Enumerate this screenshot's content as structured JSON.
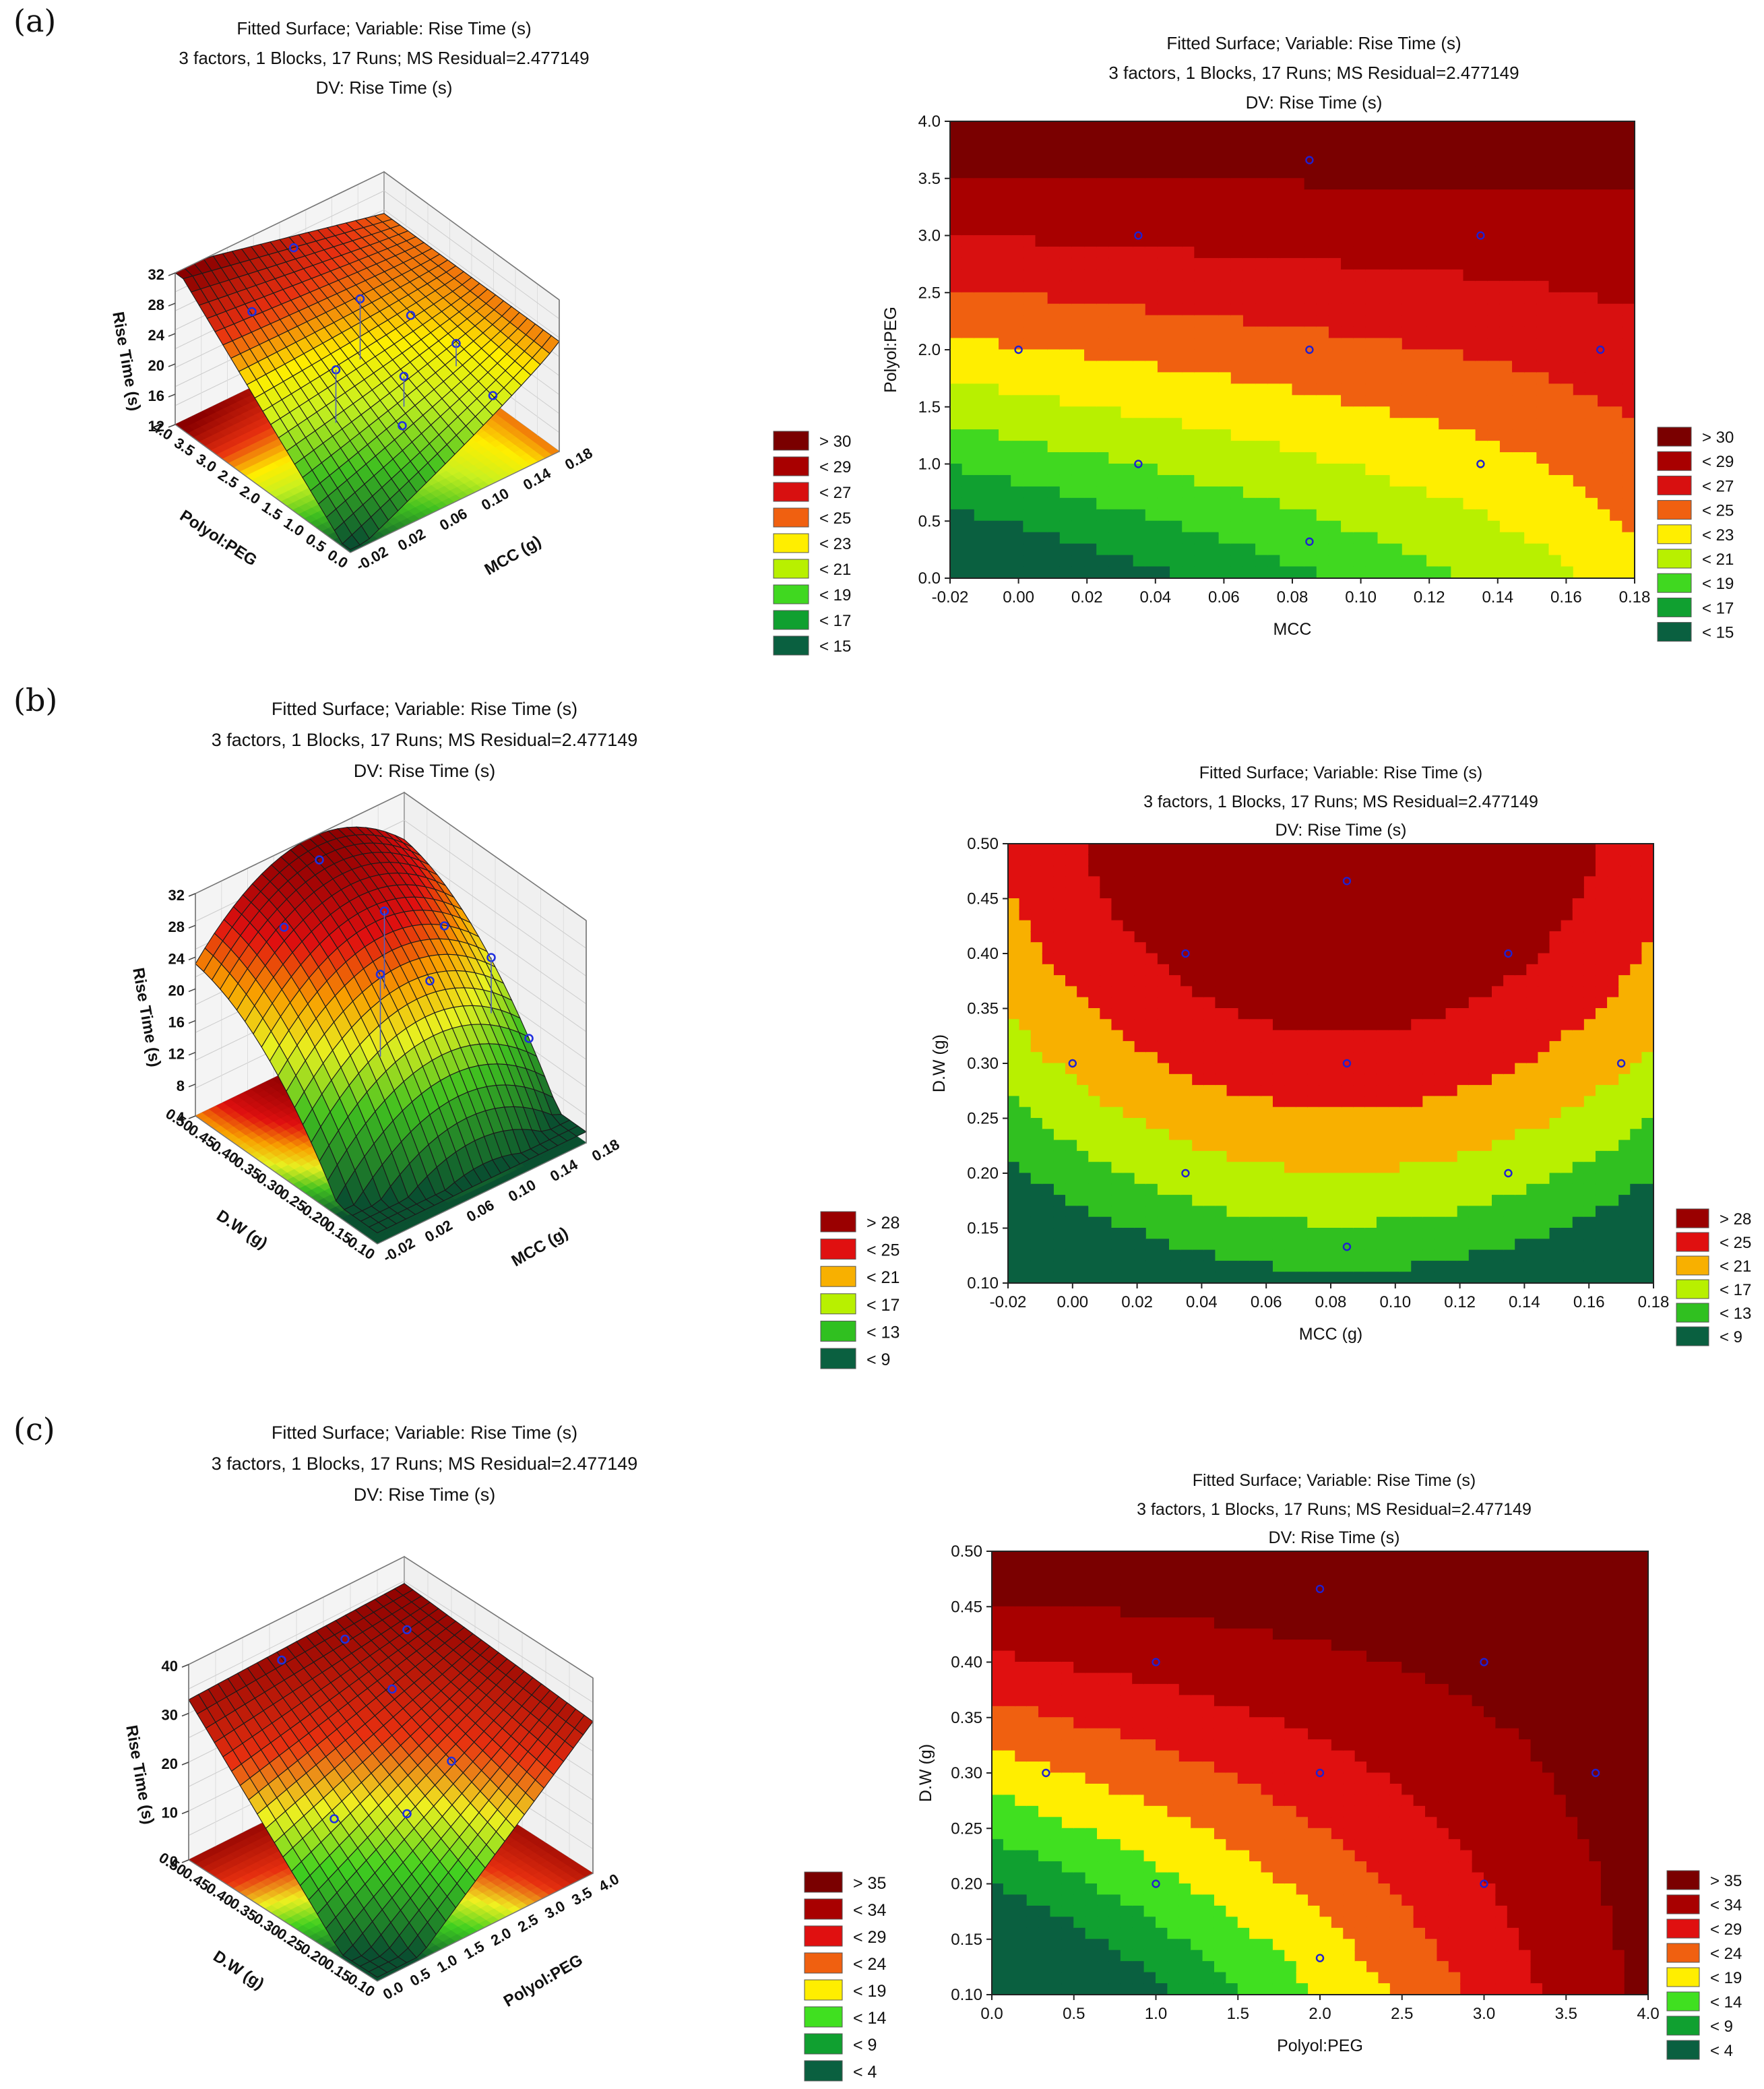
{
  "panels": [
    {
      "label": "(a)"
    },
    {
      "label": "(b)"
    },
    {
      "label": "(c)"
    }
  ],
  "chart_data": [
    {
      "type": "surface",
      "title": "Fitted Surface; Variable: Rise Time (s)",
      "subtitle": "3 factors, 1 Blocks, 17 Runs; MS Residual=2.477149",
      "dv": "DV: Rise Time (s)",
      "xlabel": "MCC (g)",
      "ylabel": "Polyol:PEG",
      "zlabel": "Rise Time (s)",
      "x_ticks": [
        "-0.02",
        "0.02",
        "0.06",
        "0.10",
        "0.14",
        "0.18"
      ],
      "y_ticks": [
        "0.0",
        "0.5",
        "1.0",
        "1.5",
        "2.0",
        "2.5",
        "3.0",
        "3.5",
        "4.0"
      ],
      "z_ticks": [
        "12",
        "16",
        "20",
        "24",
        "28",
        "32"
      ],
      "legend": [
        "> 30",
        "< 29",
        "< 27",
        "< 25",
        "< 23",
        "< 21",
        "< 19",
        "< 17",
        "< 15"
      ],
      "colors": [
        "#7a0000",
        "#a80000",
        "#d81010",
        "#f06010",
        "#ffee00",
        "#b8f000",
        "#40d820",
        "#10a030",
        "#0a6040"
      ]
    },
    {
      "type": "contour",
      "title": "Fitted Surface; Variable: Rise Time (s)",
      "subtitle": "3 factors, 1 Blocks, 17 Runs; MS Residual=2.477149",
      "dv": "DV: Rise Time (s)",
      "xlabel": "MCC",
      "ylabel": "Polyol:PEG",
      "xlim": [
        -0.02,
        0.18
      ],
      "ylim": [
        0.0,
        4.0
      ],
      "x_ticks": [
        "-0.02",
        "0.00",
        "0.02",
        "0.04",
        "0.06",
        "0.08",
        "0.10",
        "0.12",
        "0.14",
        "0.16",
        "0.18"
      ],
      "y_ticks": [
        "0.0",
        "0.5",
        "1.0",
        "1.5",
        "2.0",
        "2.5",
        "3.0",
        "3.5",
        "4.0"
      ],
      "points": [
        [
          0.085,
          3.66
        ],
        [
          0.035,
          3.0
        ],
        [
          0.135,
          3.0
        ],
        [
          0.0,
          2.0
        ],
        [
          0.085,
          2.0
        ],
        [
          0.17,
          2.0
        ],
        [
          0.035,
          1.0
        ],
        [
          0.135,
          1.0
        ],
        [
          0.085,
          0.32
        ]
      ],
      "legend": [
        "> 30",
        "< 29",
        "< 27",
        "< 25",
        "< 23",
        "< 21",
        "< 19",
        "< 17",
        "< 15"
      ],
      "colors": [
        "#7a0000",
        "#a80000",
        "#d81010",
        "#f06010",
        "#ffee00",
        "#b8f000",
        "#40d820",
        "#10a030",
        "#0a6040"
      ]
    },
    {
      "type": "surface",
      "title": "Fitted Surface; Variable: Rise Time (s)",
      "subtitle": "3 factors, 1 Blocks, 17 Runs; MS Residual=2.477149",
      "dv": "DV: Rise Time (s)",
      "xlabel": "MCC (g)",
      "ylabel": "D.W (g)",
      "zlabel": "Rise Time (s)",
      "x_ticks": [
        "-0.02",
        "0.02",
        "0.06",
        "0.10",
        "0.14",
        "0.18"
      ],
      "y_ticks": [
        "0.10",
        "0.15",
        "0.20",
        "0.25",
        "0.30",
        "0.35",
        "0.40",
        "0.45",
        "0.50"
      ],
      "z_ticks": [
        "4",
        "8",
        "12",
        "16",
        "20",
        "24",
        "28",
        "32"
      ],
      "legend": [
        "> 28",
        "< 25",
        "< 21",
        "< 17",
        "< 13",
        "< 9"
      ],
      "colors": [
        "#9a0000",
        "#e01010",
        "#f8b000",
        "#b8f000",
        "#30c020",
        "#0a6040"
      ]
    },
    {
      "type": "contour",
      "title": "Fitted Surface; Variable: Rise Time (s)",
      "subtitle": "3 factors, 1 Blocks, 17 Runs; MS Residual=2.477149",
      "dv": "DV: Rise Time (s)",
      "xlabel": "MCC (g)",
      "ylabel": "D.W (g)",
      "xlim": [
        -0.02,
        0.18
      ],
      "ylim": [
        0.1,
        0.5
      ],
      "x_ticks": [
        "-0.02",
        "0.00",
        "0.02",
        "0.04",
        "0.06",
        "0.08",
        "0.10",
        "0.12",
        "0.14",
        "0.16",
        "0.18"
      ],
      "y_ticks": [
        "0.10",
        "0.15",
        "0.20",
        "0.25",
        "0.30",
        "0.35",
        "0.40",
        "0.45",
        "0.50"
      ],
      "points": [
        [
          0.085,
          0.466
        ],
        [
          0.035,
          0.4
        ],
        [
          0.135,
          0.4
        ],
        [
          0.0,
          0.3
        ],
        [
          0.085,
          0.3
        ],
        [
          0.17,
          0.3
        ],
        [
          0.035,
          0.2
        ],
        [
          0.135,
          0.2
        ],
        [
          0.085,
          0.133
        ]
      ],
      "legend": [
        "> 28",
        "< 25",
        "< 21",
        "< 17",
        "< 13",
        "< 9"
      ],
      "colors": [
        "#9a0000",
        "#e01010",
        "#f8b000",
        "#b8f000",
        "#30c020",
        "#0a6040"
      ]
    },
    {
      "type": "surface",
      "title": "Fitted Surface; Variable: Rise Time (s)",
      "subtitle": "3 factors, 1 Blocks, 17 Runs; MS Residual=2.477149",
      "dv": "DV: Rise Time (s)",
      "xlabel": "Polyol:PEG",
      "ylabel": "D.W (g)",
      "zlabel": "Rise Time (s)",
      "x_ticks": [
        "0.0",
        "0.5",
        "1.0",
        "1.5",
        "2.0",
        "2.5",
        "3.0",
        "3.5",
        "4.0"
      ],
      "y_ticks": [
        "0.10",
        "0.15",
        "0.20",
        "0.25",
        "0.30",
        "0.35",
        "0.40",
        "0.45",
        "0.50"
      ],
      "z_ticks": [
        "0",
        "10",
        "20",
        "30",
        "40"
      ],
      "legend": [
        "> 35",
        "< 34",
        "< 29",
        "< 24",
        "< 19",
        "< 14",
        "< 9",
        "< 4"
      ],
      "colors": [
        "#7a0000",
        "#a80000",
        "#e01010",
        "#f06010",
        "#ffee00",
        "#40e020",
        "#10a030",
        "#0a6040"
      ]
    },
    {
      "type": "contour",
      "title": "Fitted Surface; Variable: Rise Time (s)",
      "subtitle": "3 factors, 1 Blocks, 17 Runs; MS Residual=2.477149",
      "dv": "DV: Rise Time (s)",
      "xlabel": "Polyol:PEG",
      "ylabel": "D.W (g)",
      "xlim": [
        0.0,
        4.0
      ],
      "ylim": [
        0.1,
        0.5
      ],
      "x_ticks": [
        "0.0",
        "0.5",
        "1.0",
        "1.5",
        "2.0",
        "2.5",
        "3.0",
        "3.5",
        "4.0"
      ],
      "y_ticks": [
        "0.10",
        "0.15",
        "0.20",
        "0.25",
        "0.30",
        "0.35",
        "0.40",
        "0.45",
        "0.50"
      ],
      "points": [
        [
          2.0,
          0.466
        ],
        [
          1.0,
          0.4
        ],
        [
          3.0,
          0.4
        ],
        [
          0.33,
          0.3
        ],
        [
          2.0,
          0.3
        ],
        [
          3.68,
          0.3
        ],
        [
          1.0,
          0.2
        ],
        [
          3.0,
          0.2
        ],
        [
          2.0,
          0.133
        ]
      ],
      "legend": [
        "> 35",
        "< 34",
        "< 29",
        "< 24",
        "< 19",
        "< 14",
        "< 9",
        "< 4"
      ],
      "colors": [
        "#7a0000",
        "#a80000",
        "#e01010",
        "#f06010",
        "#ffee00",
        "#40e020",
        "#10a030",
        "#0a6040"
      ]
    }
  ]
}
